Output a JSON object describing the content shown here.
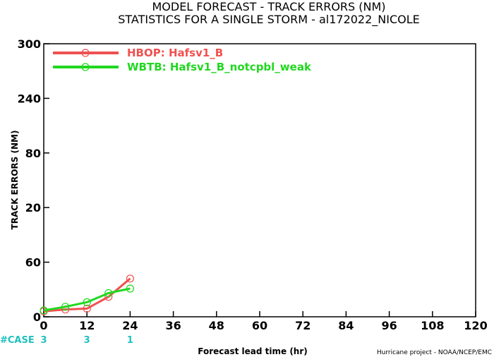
{
  "title_line1": "MODEL FORECAST - TRACK ERRORS (NM)",
  "title_line2": "STATISTICS FOR A SINGLE STORM - al172022_NICOLE",
  "credit": "Hurricane project - NOAA/NCEP/EMC",
  "case_label": "#CASE",
  "case_color": "#20c0c0",
  "chart_data": {
    "type": "line",
    "xlabel": "Forecast lead time (hr)",
    "ylabel": "TRACK ERRORS (NM)",
    "xlim": [
      0,
      120
    ],
    "ylim": [
      0,
      300
    ],
    "x_ticks": [
      0,
      12,
      24,
      36,
      48,
      60,
      72,
      84,
      96,
      108,
      120
    ],
    "y_ticks": [
      0,
      60,
      120,
      180,
      240,
      300
    ],
    "y_tick_labels": [
      "0",
      "60",
      "",
      "",
      "",
      "300"
    ],
    "y_tick_partial": [
      "",
      "",
      "20",
      "80",
      "240",
      ""
    ],
    "grid": false,
    "legend_position": "top-left",
    "series": [
      {
        "name": "HBOP: Hafsv1_B",
        "color": "#f05050",
        "x": [
          0,
          6,
          12,
          18,
          24
        ],
        "y": [
          6,
          8,
          9,
          22,
          42
        ]
      },
      {
        "name": "WBTB: Hafsv1_B_notcpbl_weak",
        "color": "#20d820",
        "x": [
          0,
          6,
          12,
          18,
          24
        ],
        "y": [
          7,
          11,
          16,
          26,
          31
        ]
      }
    ],
    "case_counts": [
      {
        "x": 0,
        "label": "3"
      },
      {
        "x": 12,
        "label": "3"
      },
      {
        "x": 24,
        "label": "1"
      }
    ]
  }
}
